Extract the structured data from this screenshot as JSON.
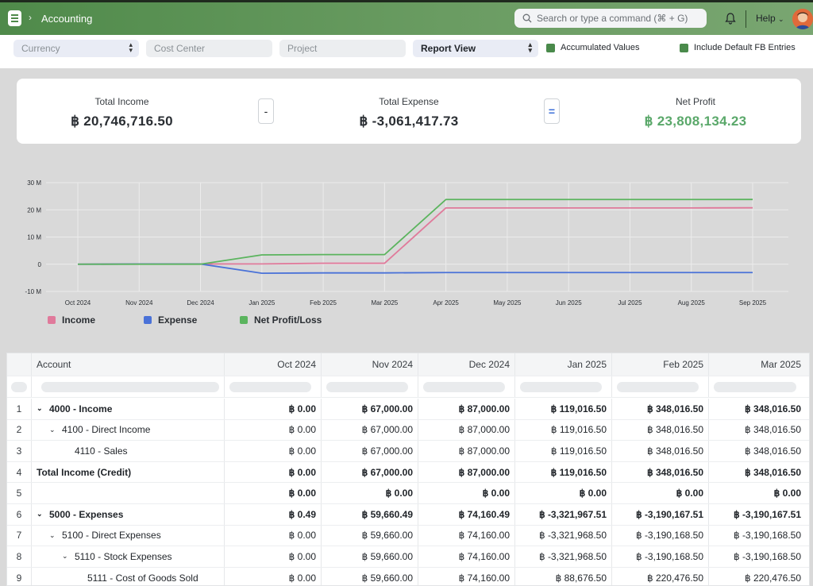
{
  "header": {
    "breadcrumb": "Accounting",
    "search_placeholder": "Search or type a command (⌘ + G)",
    "help_label": "Help"
  },
  "filters": {
    "currency_placeholder": "Currency",
    "cost_center_placeholder": "Cost Center",
    "project_placeholder": "Project",
    "report_view_value": "Report View",
    "accumulated_label": "Accumulated Values",
    "default_fb_label": "Include Default FB Entries"
  },
  "summary": {
    "income_label": "Total Income",
    "income_value": "฿ 20,746,716.50",
    "minus_op": "-",
    "expense_label": "Total Expense",
    "expense_value": "฿ -3,061,417.73",
    "equals_op": "=",
    "profit_label": "Net Profit",
    "profit_value": "฿ 23,808,134.23"
  },
  "chart_data": {
    "type": "line",
    "categories": [
      "Oct 2024",
      "Nov 2024",
      "Dec 2024",
      "Jan 2025",
      "Feb 2025",
      "Mar 2025",
      "Apr 2025",
      "May 2025",
      "Jun 2025",
      "Jul 2025",
      "Aug 2025",
      "Sep 2025"
    ],
    "y_ticks": [
      "30 M",
      "20 M",
      "10 M",
      "0",
      "-10 M"
    ],
    "ylim": [
      -10,
      30
    ],
    "y_unit": "M",
    "grid": true,
    "legend_position": "bottom-left",
    "series": [
      {
        "name": "Income",
        "color": "#e07a9b",
        "values": [
          0,
          0.067,
          0.087,
          0.119,
          0.348,
          0.348,
          20.7,
          20.7,
          20.7,
          20.7,
          20.7,
          20.75
        ]
      },
      {
        "name": "Expense",
        "color": "#4a72d8",
        "values": [
          0,
          0.06,
          0.074,
          -3.32,
          -3.19,
          -3.19,
          -3.06,
          -3.06,
          -3.06,
          -3.06,
          -3.06,
          -3.06
        ]
      },
      {
        "name": "Net Profit/Loss",
        "color": "#5bb45e",
        "values": [
          0,
          0.007,
          0.013,
          3.44,
          3.54,
          3.54,
          23.8,
          23.8,
          23.8,
          23.8,
          23.8,
          23.81
        ]
      }
    ]
  },
  "table": {
    "columns": [
      "Account",
      "Oct 2024",
      "Nov 2024",
      "Dec 2024",
      "Jan 2025",
      "Feb 2025",
      "Mar 2025"
    ],
    "rows": [
      {
        "idx": "1",
        "account": "4000 - Income",
        "bold": true,
        "caret": true,
        "indent": 0,
        "values": [
          "฿ 0.00",
          "฿ 67,000.00",
          "฿ 87,000.00",
          "฿ 119,016.50",
          "฿ 348,016.50",
          "฿ 348,016.50"
        ]
      },
      {
        "idx": "2",
        "account": "4100 - Direct Income",
        "bold": false,
        "caret": true,
        "indent": 1,
        "values": [
          "฿ 0.00",
          "฿ 67,000.00",
          "฿ 87,000.00",
          "฿ 119,016.50",
          "฿ 348,016.50",
          "฿ 348,016.50"
        ]
      },
      {
        "idx": "3",
        "account": "4110 - Sales",
        "bold": false,
        "caret": false,
        "indent": 2,
        "values": [
          "฿ 0.00",
          "฿ 67,000.00",
          "฿ 87,000.00",
          "฿ 119,016.50",
          "฿ 348,016.50",
          "฿ 348,016.50"
        ]
      },
      {
        "idx": "4",
        "account": "Total Income (Credit)",
        "bold": true,
        "caret": false,
        "indent": -1,
        "values": [
          "฿ 0.00",
          "฿ 67,000.00",
          "฿ 87,000.00",
          "฿ 119,016.50",
          "฿ 348,016.50",
          "฿ 348,016.50"
        ]
      },
      {
        "idx": "5",
        "account": "",
        "bold": true,
        "caret": false,
        "indent": -1,
        "values": [
          "฿ 0.00",
          "฿ 0.00",
          "฿ 0.00",
          "฿ 0.00",
          "฿ 0.00",
          "฿ 0.00"
        ]
      },
      {
        "idx": "6",
        "account": "5000 - Expenses",
        "bold": true,
        "caret": true,
        "indent": 0,
        "values": [
          "฿ 0.49",
          "฿ 59,660.49",
          "฿ 74,160.49",
          "฿ -3,321,967.51",
          "฿ -3,190,167.51",
          "฿ -3,190,167.51"
        ]
      },
      {
        "idx": "7",
        "account": "5100 - Direct Expenses",
        "bold": false,
        "caret": true,
        "indent": 1,
        "values": [
          "฿ 0.00",
          "฿ 59,660.00",
          "฿ 74,160.00",
          "฿ -3,321,968.50",
          "฿ -3,190,168.50",
          "฿ -3,190,168.50"
        ]
      },
      {
        "idx": "8",
        "account": "5110 - Stock Expenses",
        "bold": false,
        "caret": true,
        "indent": 2,
        "values": [
          "฿ 0.00",
          "฿ 59,660.00",
          "฿ 74,160.00",
          "฿ -3,321,968.50",
          "฿ -3,190,168.50",
          "฿ -3,190,168.50"
        ]
      },
      {
        "idx": "9",
        "account": "5111 - Cost of Goods Sold",
        "bold": false,
        "caret": false,
        "indent": 3,
        "values": [
          "฿ 0.00",
          "฿ 59,660.00",
          "฿ 74,160.00",
          "฿ 88,676.50",
          "฿ 220,476.50",
          "฿ 220,476.50"
        ]
      }
    ]
  }
}
